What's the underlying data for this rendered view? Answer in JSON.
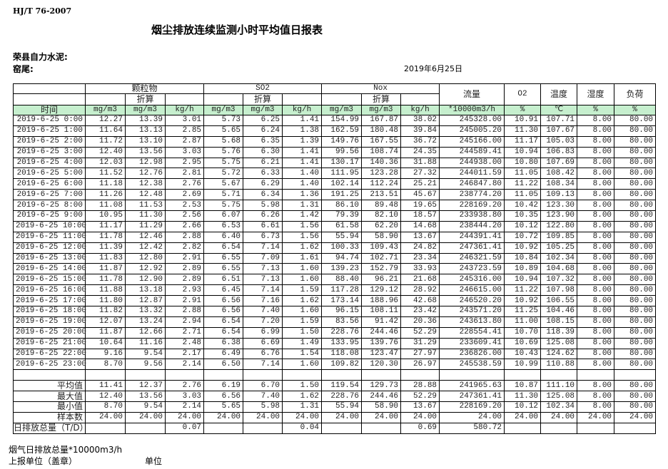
{
  "header": {
    "standard": "HJ/T  76-2007",
    "title": "烟尘排放连续监测小时平均值日报表",
    "company": "荣县自力水泥:",
    "site": "窑尾:",
    "date": "2019年6月25日"
  },
  "table": {
    "groups": {
      "particulate": "颗粒物",
      "so2": "SO2",
      "nox": "Nox",
      "flow": "流量",
      "o2": "O2",
      "temp": "温度",
      "humidity": "湿度",
      "load": "负荷"
    },
    "converted_label": "折算",
    "units": [
      "时间",
      "mg/m3",
      "mg/m3",
      "kg/h",
      "mg/m3",
      "mg/m3",
      "kg/h",
      "mg/m3",
      "mg/m3",
      "kg/h",
      "*10000m3/h",
      "%",
      "℃",
      "%",
      "%"
    ],
    "header_color": "#c6efce",
    "rows": [
      [
        "2019-6-25 0:00",
        "12.27",
        "13.39",
        "3.01",
        "5.73",
        "6.25",
        "1.41",
        "154.99",
        "167.87",
        "38.02",
        "245328.00",
        "10.91",
        "107.71",
        "8.00",
        "80.00"
      ],
      [
        "2019-6-25 1:00",
        "11.64",
        "13.13",
        "2.85",
        "5.65",
        "6.24",
        "1.38",
        "162.59",
        "180.48",
        "39.84",
        "245005.20",
        "11.30",
        "107.67",
        "8.00",
        "80.00"
      ],
      [
        "2019-6-25 2:00",
        "11.72",
        "13.10",
        "2.87",
        "5.68",
        "6.35",
        "1.39",
        "149.76",
        "167.55",
        "36.72",
        "245166.00",
        "11.17",
        "105.03",
        "8.00",
        "80.00"
      ],
      [
        "2019-6-25 3:00",
        "12.40",
        "13.56",
        "3.03",
        "5.76",
        "6.30",
        "1.41",
        "99.56",
        "108.74",
        "24.35",
        "244589.41",
        "10.94",
        "106.83",
        "8.00",
        "80.00"
      ],
      [
        "2019-6-25 4:00",
        "12.03",
        "12.98",
        "2.95",
        "5.75",
        "6.21",
        "1.41",
        "130.17",
        "140.36",
        "31.88",
        "244938.00",
        "10.80",
        "107.69",
        "8.00",
        "80.00"
      ],
      [
        "2019-6-25 5:00",
        "11.52",
        "12.76",
        "2.81",
        "5.72",
        "6.33",
        "1.40",
        "111.95",
        "123.28",
        "27.32",
        "244011.59",
        "11.05",
        "108.42",
        "8.00",
        "80.00"
      ],
      [
        "2019-6-25 6:00",
        "11.18",
        "12.38",
        "2.76",
        "5.67",
        "6.29",
        "1.40",
        "102.14",
        "112.24",
        "25.21",
        "246847.80",
        "11.22",
        "108.34",
        "8.00",
        "80.00"
      ],
      [
        "2019-6-25 7:00",
        "11.26",
        "12.48",
        "2.69",
        "5.71",
        "6.34",
        "1.36",
        "191.25",
        "213.51",
        "45.67",
        "238774.20",
        "11.05",
        "109.13",
        "8.00",
        "80.00"
      ],
      [
        "2019-6-25 8:00",
        "11.08",
        "11.53",
        "2.53",
        "5.75",
        "5.98",
        "1.31",
        "86.10",
        "89.48",
        "19.65",
        "228169.20",
        "10.42",
        "123.30",
        "8.00",
        "80.00"
      ],
      [
        "2019-6-25 9:00",
        "10.95",
        "11.30",
        "2.56",
        "6.07",
        "6.26",
        "1.42",
        "79.39",
        "82.10",
        "18.57",
        "233938.80",
        "10.35",
        "123.90",
        "8.00",
        "80.00"
      ],
      [
        "2019-6-25 10:00",
        "11.17",
        "11.29",
        "2.66",
        "6.53",
        "6.61",
        "1.56",
        "61.58",
        "62.20",
        "14.68",
        "238444.20",
        "10.12",
        "122.80",
        "8.00",
        "80.00"
      ],
      [
        "2019-6-25 11:00",
        "11.78",
        "12.46",
        "2.88",
        "6.40",
        "6.73",
        "1.56",
        "55.94",
        "58.90",
        "13.67",
        "244391.41",
        "10.72",
        "109.85",
        "8.00",
        "80.00"
      ],
      [
        "2019-6-25 12:00",
        "11.39",
        "12.42",
        "2.82",
        "6.54",
        "7.14",
        "1.62",
        "100.33",
        "109.43",
        "24.82",
        "247361.41",
        "10.92",
        "105.25",
        "8.00",
        "80.00"
      ],
      [
        "2019-6-25 13:00",
        "11.83",
        "12.80",
        "2.91",
        "6.55",
        "7.09",
        "1.61",
        "94.74",
        "102.71",
        "23.34",
        "246321.59",
        "10.84",
        "102.34",
        "8.00",
        "80.00"
      ],
      [
        "2019-6-25 14:00",
        "11.87",
        "12.92",
        "2.89",
        "6.55",
        "7.13",
        "1.60",
        "139.23",
        "152.79",
        "33.93",
        "243723.59",
        "10.89",
        "104.68",
        "8.00",
        "80.00"
      ],
      [
        "2019-6-25 15:00",
        "11.78",
        "12.90",
        "2.89",
        "6.51",
        "7.13",
        "1.60",
        "88.40",
        "96.21",
        "21.68",
        "245316.00",
        "10.94",
        "107.32",
        "8.00",
        "80.00"
      ],
      [
        "2019-6-25 16:00",
        "11.88",
        "13.18",
        "2.93",
        "6.45",
        "7.14",
        "1.59",
        "117.28",
        "129.12",
        "28.92",
        "246615.00",
        "11.22",
        "107.98",
        "8.00",
        "80.00"
      ],
      [
        "2019-6-25 17:00",
        "11.80",
        "12.87",
        "2.91",
        "6.56",
        "7.16",
        "1.62",
        "173.14",
        "188.96",
        "42.68",
        "246520.20",
        "10.92",
        "106.55",
        "8.00",
        "80.00"
      ],
      [
        "2019-6-25 18:00",
        "11.82",
        "13.32",
        "2.88",
        "6.56",
        "7.40",
        "1.60",
        "96.15",
        "108.11",
        "23.42",
        "243571.20",
        "11.25",
        "104.46",
        "8.00",
        "80.00"
      ],
      [
        "2019-6-25 19:00",
        "12.07",
        "13.24",
        "2.94",
        "6.54",
        "7.20",
        "1.59",
        "83.56",
        "91.42",
        "20.36",
        "243613.80",
        "11.00",
        "108.15",
        "8.00",
        "80.00"
      ],
      [
        "2019-6-25 20:00",
        "11.87",
        "12.66",
        "2.71",
        "6.54",
        "6.99",
        "1.50",
        "228.76",
        "244.46",
        "52.29",
        "228554.41",
        "10.70",
        "118.39",
        "8.00",
        "80.00"
      ],
      [
        "2019-6-25 21:00",
        "10.64",
        "11.16",
        "2.48",
        "6.38",
        "6.69",
        "1.49",
        "133.95",
        "139.76",
        "31.29",
        "233609.41",
        "10.69",
        "125.08",
        "8.00",
        "80.00"
      ],
      [
        "2019-6-25 22:00",
        "9.16",
        "9.54",
        "2.17",
        "6.49",
        "6.76",
        "1.54",
        "118.08",
        "123.47",
        "27.97",
        "236826.00",
        "10.43",
        "124.62",
        "8.00",
        "80.00"
      ],
      [
        "2019-6-25 23:00",
        "8.70",
        "9.56",
        "2.14",
        "6.50",
        "7.14",
        "1.60",
        "109.82",
        "120.30",
        "26.97",
        "245538.59",
        "10.99",
        "110.88",
        "8.00",
        "80.00"
      ]
    ],
    "stats": [
      [
        "平均值",
        "11.41",
        "12.37",
        "2.76",
        "6.19",
        "6.70",
        "1.50",
        "119.54",
        "129.73",
        "28.88",
        "241965.63",
        "10.87",
        "111.10",
        "8.00",
        "80.00"
      ],
      [
        "最大值",
        "12.40",
        "13.56",
        "3.03",
        "6.56",
        "7.40",
        "1.62",
        "228.76",
        "244.46",
        "52.29",
        "247361.41",
        "11.30",
        "125.08",
        "8.00",
        "80.00"
      ],
      [
        "最小值",
        "8.70",
        "9.54",
        "2.14",
        "5.65",
        "5.98",
        "1.31",
        "55.94",
        "58.90",
        "13.67",
        "228169.20",
        "10.12",
        "102.34",
        "8.00",
        "80.00"
      ],
      [
        "样本数",
        "24.00",
        "24.00",
        "24.00",
        "24.00",
        "24.00",
        "24.00",
        "24.00",
        "24.00",
        "24.00",
        "24.00",
        "24.00",
        "24.00",
        "24.00",
        "24.00"
      ]
    ],
    "daily_total": [
      "日排放总量（T/D）",
      "",
      "",
      "0.07",
      "",
      "",
      "0.04",
      "",
      "",
      "0.69",
      "580.72",
      "",
      "",
      "",
      ""
    ]
  },
  "footer": {
    "flue_gas_total": "烟气日排放总量*10000m3/h",
    "reporting_unit": "上报单位（盖章）",
    "unit": "单位"
  }
}
